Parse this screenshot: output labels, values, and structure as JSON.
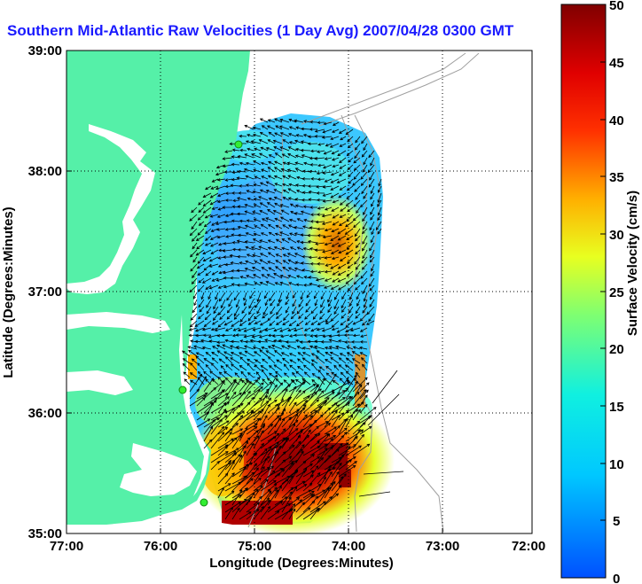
{
  "title": "Southern Mid-Atlantic Raw Velocities (1 Day Avg) 2007/04/28 0300 GMT",
  "x_axis": {
    "label": "Longitude (Degrees:Minutes)",
    "ticks": [
      "77:00",
      "76:00",
      "75:00",
      "74:00",
      "73:00",
      "72:00"
    ]
  },
  "y_axis": {
    "label": "Latitude (Degrees:Minutes)",
    "ticks": [
      "39:00",
      "38:00",
      "37:00",
      "36:00",
      "35:00"
    ]
  },
  "colorbar": {
    "label": "Surface Velocity (cm/s)",
    "ticks": [
      "50",
      "45",
      "40",
      "35",
      "30",
      "25",
      "20",
      "15",
      "10",
      "5",
      "0"
    ],
    "min": 0,
    "max": 50
  },
  "grid": true,
  "colors": {
    "title": "#1a1aff",
    "land": "#55f0a8",
    "water": "#ffffff",
    "vectors": "#000000",
    "stations": "#33ee33"
  }
}
